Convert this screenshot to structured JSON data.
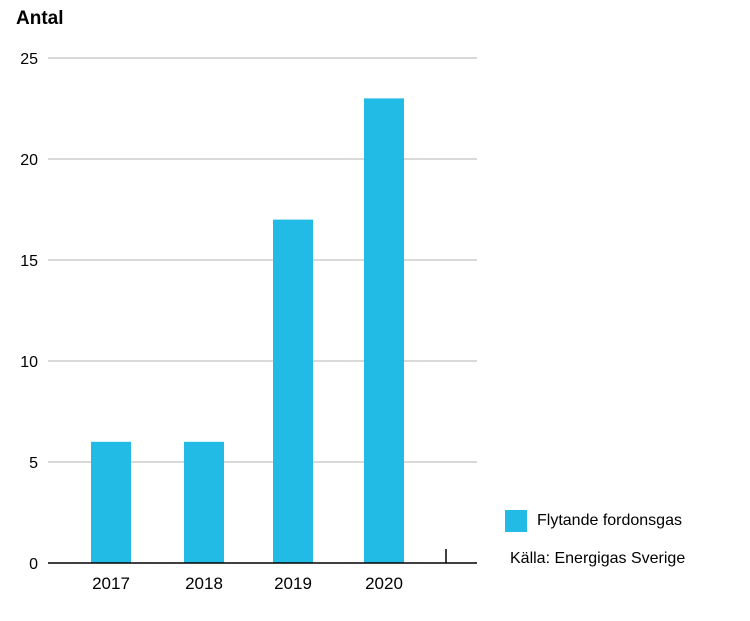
{
  "chart_data": {
    "type": "bar",
    "title": "",
    "ylabel": "Antal",
    "xlabel": "",
    "categories": [
      "2017",
      "2018",
      "2019",
      "2020"
    ],
    "series": [
      {
        "name": "Flytande fordonsgas",
        "values": [
          6,
          6,
          17,
          23
        ]
      }
    ],
    "ylim": [
      0,
      25
    ],
    "yticks": [
      0,
      5,
      10,
      15,
      20,
      25
    ],
    "grid": true,
    "legend_position": "right",
    "bar_color": "#22bbe6",
    "source": "Källa: Energigas Sverige"
  }
}
